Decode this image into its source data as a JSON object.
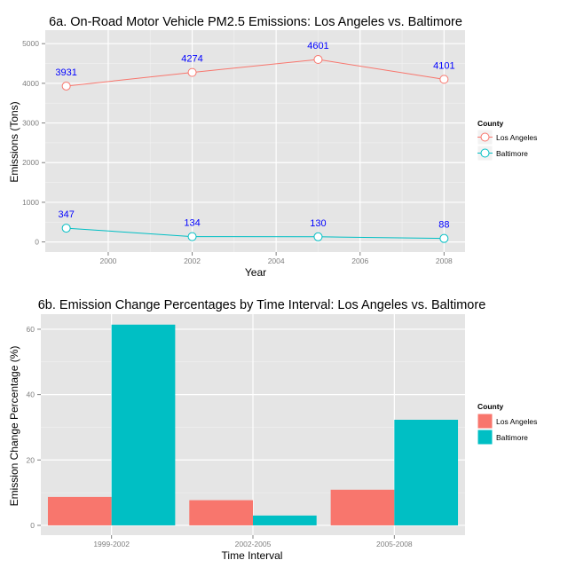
{
  "chart_data": [
    {
      "type": "line",
      "title": "6a. On-Road Motor Vehicle PM2.5 Emissions: Los Angeles vs. Baltimore",
      "xlabel": "Year",
      "ylabel": "Emissions (Tons)",
      "x": [
        1999,
        2002,
        2005,
        2008
      ],
      "xticks": [
        2000,
        2002,
        2004,
        2006,
        2008
      ],
      "xlim": [
        1998.5,
        2008.5
      ],
      "yticks": [
        0,
        1000,
        2000,
        3000,
        4000,
        5000
      ],
      "ylim": [
        -255,
        5340
      ],
      "grid": true,
      "legend": {
        "title": "County",
        "placement": "right",
        "items": [
          "Los Angeles",
          "Baltimore"
        ]
      },
      "series": [
        {
          "name": "Los Angeles",
          "color": "#f8766d",
          "values": [
            3931,
            4274,
            4601,
            4101
          ],
          "labels": [
            "3931",
            "4274",
            "4601",
            "4101"
          ]
        },
        {
          "name": "Baltimore",
          "color": "#00bfc4",
          "values": [
            347,
            134,
            130,
            88
          ],
          "labels": [
            "347",
            "134",
            "130",
            "88"
          ]
        }
      ],
      "data_label_color": "#0000ff"
    },
    {
      "type": "bar",
      "title": "6b. Emission Change Percentages by Time Interval: Los Angeles vs. Baltimore",
      "xlabel": "Time Interval",
      "ylabel": "Emission Change Percentage (%)",
      "categories": [
        "1999-2002",
        "2002-2005",
        "2005-2008"
      ],
      "yticks": [
        0,
        20,
        40,
        60
      ],
      "ylim": [
        -3,
        64.6
      ],
      "grid": true,
      "legend": {
        "title": "County",
        "placement": "right",
        "items": [
          "Los Angeles",
          "Baltimore"
        ]
      },
      "series": [
        {
          "name": "Los Angeles",
          "color": "#f8766d",
          "values": [
            8.7,
            7.7,
            10.9
          ]
        },
        {
          "name": "Baltimore",
          "color": "#00bfc4",
          "values": [
            61.4,
            3.0,
            32.3
          ]
        }
      ]
    }
  ]
}
